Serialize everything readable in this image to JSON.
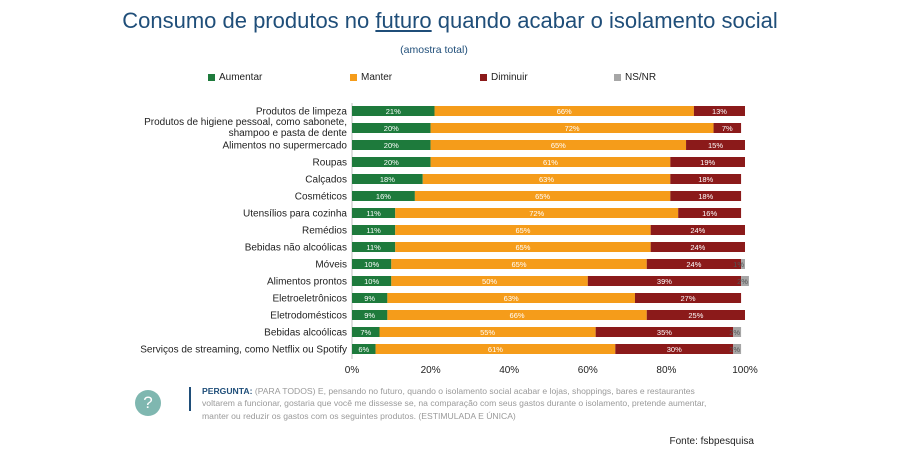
{
  "header": {
    "title_before": "Consumo de produtos no ",
    "title_underlined": "futuro",
    "title_after": " quando acabar o isolamento social",
    "subtitle": "(amostra total)"
  },
  "colors": {
    "aumentar": "#1e7a3c",
    "manter": "#f59c1a",
    "diminuir": "#8b1a1a",
    "nsnr": "#a6a6a6",
    "title": "#1f4e79"
  },
  "chart_data": {
    "type": "bar",
    "orientation": "horizontal",
    "stacked": true,
    "percent_stacked": true,
    "title": "Consumo de produtos no futuro quando acabar o isolamento social",
    "subtitle": "(amostra total)",
    "legend_position": "top",
    "xlim": [
      0,
      100
    ],
    "xticks": [
      "0%",
      "20%",
      "40%",
      "60%",
      "80%",
      "100%"
    ],
    "categories": [
      "Produtos de limpeza",
      "Produtos de higiene pessoal, como sabonete, shampoo e pasta de dente",
      "Alimentos no supermercado",
      "Roupas",
      "Calçados",
      "Cosméticos",
      "Utensílios para cozinha",
      "Remédios",
      "Bebidas não alcoólicas",
      "Móveis",
      "Alimentos prontos",
      "Eletroeletrônicos",
      "Eletrodomésticos",
      "Bebidas alcoólicas",
      "Serviços de streaming, como Netflix ou Spotify"
    ],
    "series": [
      {
        "name": "Aumentar",
        "values": [
          21,
          20,
          20,
          20,
          18,
          16,
          11,
          11,
          11,
          10,
          10,
          9,
          9,
          7,
          6
        ]
      },
      {
        "name": "Manter",
        "values": [
          66,
          72,
          65,
          61,
          63,
          65,
          72,
          65,
          65,
          65,
          50,
          63,
          66,
          55,
          61
        ]
      },
      {
        "name": "Diminuir",
        "values": [
          13,
          7,
          15,
          19,
          18,
          18,
          16,
          24,
          24,
          24,
          39,
          27,
          25,
          35,
          30
        ]
      },
      {
        "name": "NS/NR",
        "values": [
          0,
          0,
          0,
          0,
          0,
          0,
          0,
          0,
          0,
          1,
          2,
          0,
          0,
          2,
          2
        ]
      }
    ]
  },
  "question": {
    "label": "PERGUNTA:",
    "text": "(PARA TODOS) E, pensando no futuro, quando o isolamento social acabar e lojas, shoppings, bares e restaurantes voltarem a funcionar, gostaria que você me dissesse se, na comparação com seus gastos durante o isolamento, pretende aumentar, manter ou reduzir os gastos com os seguintes produtos. (ESTIMULADA E ÚNICA)",
    "icon": "question-icon",
    "icon_glyph": "?"
  },
  "source": "Fonte: fsbpesquisa"
}
